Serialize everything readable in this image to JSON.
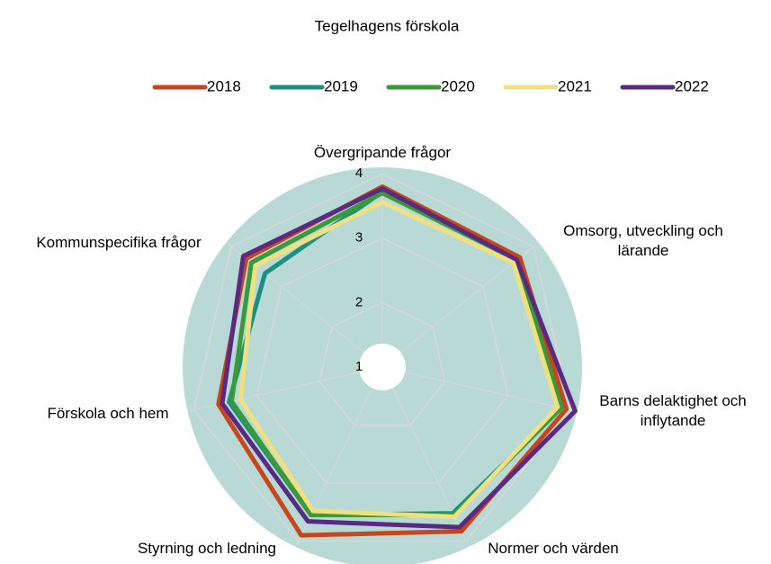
{
  "chart_data": {
    "type": "radar",
    "title": "Tegelhagens förskola",
    "categories": [
      "Övergripande frågor",
      "Omsorg, utveckling och lärande",
      "Barns delaktighet och inflytande",
      "Normer och värden",
      "Styrning och ledning",
      "Förskola och hem",
      "Kommunspecifika frågor"
    ],
    "series": [
      {
        "name": "2018",
        "color": "#c8461b",
        "values": [
          3.8,
          3.73,
          3.93,
          3.83,
          3.9,
          3.61,
          3.7
        ]
      },
      {
        "name": "2019",
        "color": "#1a9080",
        "values": [
          3.72,
          3.67,
          3.85,
          3.52,
          3.55,
          3.44,
          3.33
        ]
      },
      {
        "name": "2020",
        "color": "#3a9a3a",
        "values": [
          3.7,
          3.67,
          3.85,
          3.55,
          3.55,
          3.4,
          3.6
        ]
      },
      {
        "name": "2021",
        "color": "#f0e080",
        "values": [
          3.56,
          3.6,
          3.79,
          3.58,
          3.48,
          3.26,
          3.52
        ]
      },
      {
        "name": "2022",
        "color": "#5a2a82",
        "values": [
          3.77,
          3.67,
          4.07,
          3.76,
          3.66,
          3.55,
          3.76
        ]
      }
    ],
    "ylim": [
      1,
      4.1
    ],
    "yticks": [
      1,
      2,
      3,
      4
    ],
    "grid": true,
    "legend": "top"
  }
}
